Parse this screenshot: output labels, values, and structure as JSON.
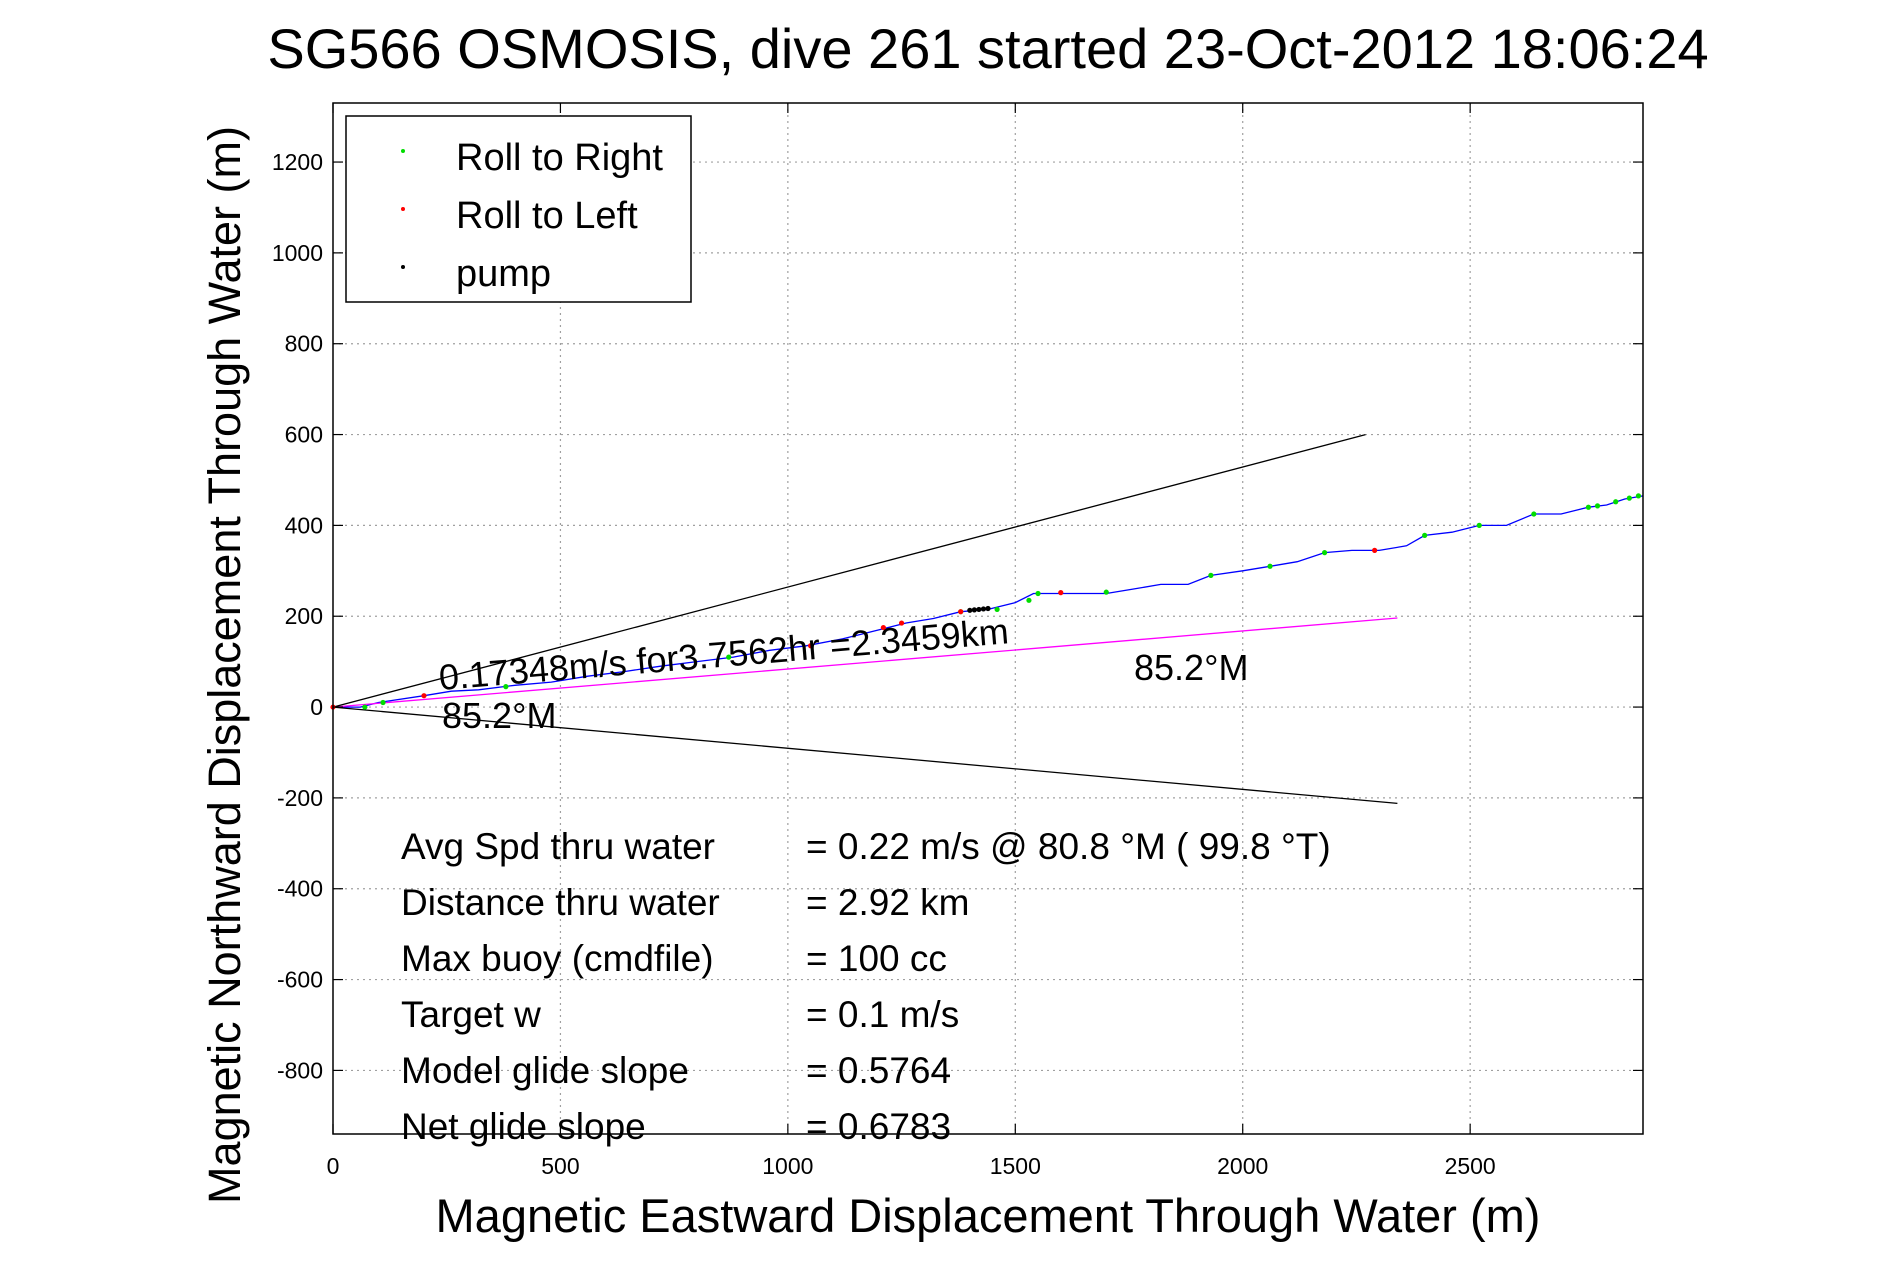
{
  "chart_data": {
    "type": "line",
    "title": "SG566 OSMOSIS, dive 261 started 23-Oct-2012 18:06:24",
    "xlabel": "Magnetic Eastward Displacement Through Water (m)",
    "ylabel": "Magnetic Northward Displacement Through Water (m)",
    "xlim": [
      0,
      2880
    ],
    "ylim": [
      -940,
      1330
    ],
    "xticks": [
      0,
      500,
      1000,
      1500,
      2000,
      2500
    ],
    "yticks": [
      -800,
      -600,
      -400,
      -200,
      0,
      200,
      400,
      600,
      800,
      1000,
      1200
    ],
    "grid": true,
    "legend_placement": "top-left",
    "legend": [
      {
        "label": "Roll to Right",
        "color": "#00dd00"
      },
      {
        "label": "Roll to Left",
        "color": "#ff0000"
      },
      {
        "label": "pump",
        "color": "#000000"
      }
    ],
    "series": [
      {
        "name": "track",
        "color": "#0000ff",
        "x": [
          0,
          60,
          100,
          200,
          260,
          320,
          400,
          480,
          560,
          640,
          720,
          800,
          880,
          960,
          1040,
          1120,
          1200,
          1260,
          1320,
          1380,
          1440,
          1500,
          1540,
          1600,
          1650,
          1700,
          1760,
          1820,
          1880,
          1930,
          2000,
          2060,
          2120,
          2180,
          2240,
          2300,
          2360,
          2400,
          2460,
          2520,
          2580,
          2640,
          2700,
          2760,
          2800,
          2840,
          2880
        ],
        "y": [
          0,
          0,
          10,
          25,
          35,
          38,
          48,
          55,
          68,
          78,
          90,
          100,
          110,
          125,
          135,
          150,
          170,
          185,
          195,
          210,
          215,
          230,
          250,
          250,
          250,
          250,
          260,
          270,
          270,
          290,
          300,
          310,
          320,
          340,
          345,
          345,
          355,
          378,
          385,
          400,
          400,
          425,
          425,
          440,
          445,
          458,
          465
        ]
      },
      {
        "name": "heading",
        "color": "#ff00ff",
        "x": [
          0,
          2340
        ],
        "y": [
          0,
          196
        ]
      },
      {
        "name": "bound-upper",
        "color": "#000000",
        "x": [
          0,
          2270
        ],
        "y": [
          0,
          600
        ]
      },
      {
        "name": "bound-lower",
        "color": "#000000",
        "x": [
          0,
          2340
        ],
        "y": [
          0,
          -212
        ]
      }
    ],
    "markers": {
      "roll_right": {
        "color": "#00dd00",
        "x": [
          70,
          110,
          380,
          870,
          1380,
          1460,
          1530,
          1550,
          1700,
          1930,
          2060,
          2180,
          2400,
          2520,
          2640,
          2760,
          2780,
          2820,
          2850,
          2870
        ],
        "y": [
          0,
          10,
          45,
          110,
          210,
          215,
          235,
          250,
          253,
          290,
          310,
          340,
          378,
          400,
          425,
          440,
          443,
          452,
          460,
          465
        ]
      },
      "roll_left": {
        "color": "#ff0000",
        "x": [
          0,
          200,
          1050,
          1210,
          1250,
          1380,
          1600,
          2290
        ],
        "y": [
          0,
          25,
          135,
          175,
          185,
          210,
          252,
          345
        ]
      },
      "pump": {
        "color": "#000000",
        "x": [
          1400,
          1410,
          1420,
          1430,
          1440
        ],
        "y": [
          213,
          214,
          215,
          216,
          217
        ]
      }
    },
    "annotations": {
      "speed_line": "0.17348m/s for3.7562hr =2.3459km",
      "heading_label_start": "85.2°M",
      "heading_label_end": "85.2°M"
    },
    "stats": [
      {
        "label": "Avg Spd thru water",
        "value": "=  0.22 m/s @  80.8 °M ( 99.8 °T)"
      },
      {
        "label": "Distance thru water",
        "value": "=  2.92 km"
      },
      {
        "label": "Max buoy (cmdfile)",
        "value": "= 100 cc"
      },
      {
        "label": "Target w",
        "value": "= 0.1 m/s"
      },
      {
        "label": "Model glide slope",
        "value": "= 0.5764"
      },
      {
        "label": "Net glide slope",
        "value": "= 0.6783"
      }
    ]
  }
}
